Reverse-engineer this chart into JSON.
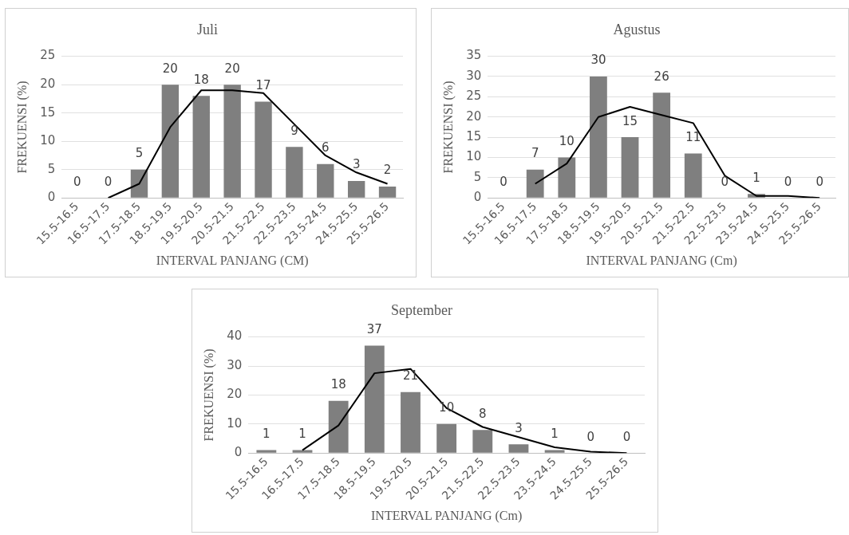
{
  "chart_data": [
    {
      "type": "bar",
      "title": "Juli",
      "xlabel": "INTERVAL PANJANG (CM)",
      "ylabel": "FREKUENSI (%)",
      "categories": [
        "15.5-16.5",
        "16.5-17.5",
        "17.5-18.5",
        "18.5-19.5",
        "19.5-20.5",
        "20.5-21.5",
        "21.5-22.5",
        "22.5-23.5",
        "23.5-24.5",
        "24.5-25.5",
        "25.5-26.5"
      ],
      "series": [
        {
          "color": "#7f7f7f",
          "values": [
            0,
            0,
            5,
            20,
            18,
            20,
            17,
            9,
            6,
            3,
            2
          ],
          "value_labels": [
            "0",
            "0",
            "5",
            "20",
            "18",
            "20",
            "17",
            "9",
            "6",
            "3",
            "2"
          ]
        },
        {
          "type": "line",
          "color": "#000000",
          "marker": "none",
          "values": [
            null,
            0,
            2.5,
            12.5,
            19,
            19,
            18.5,
            13,
            7.5,
            4.5,
            2.5
          ]
        }
      ],
      "ylim": [
        0,
        25
      ],
      "yticks": [
        0,
        5,
        10,
        15,
        20,
        25
      ],
      "grid": "y"
    },
    {
      "type": "bar",
      "title": "Agustus",
      "xlabel": "INTERVAL PANJANG (Cm)",
      "ylabel": "FREKUENSI (%)",
      "categories": [
        "15.5-16.5",
        "16.5-17.5",
        "17.5-18.5",
        "18.5-19.5",
        "19.5-20.5",
        "20.5-21.5",
        "21.5-22.5",
        "22.5-23.5",
        "23.5-24.5",
        "24.5-25.5",
        "25.5-26.5"
      ],
      "series": [
        {
          "color": "#7f7f7f",
          "values": [
            0,
            7,
            10,
            30,
            15,
            26,
            11,
            0,
            1,
            0,
            0
          ],
          "value_labels": [
            "0",
            "7",
            "10",
            "30",
            "15",
            "26",
            "11",
            "0",
            "1",
            "0",
            "0"
          ]
        },
        {
          "type": "line",
          "color": "#000000",
          "marker": "none",
          "values": [
            null,
            3.5,
            8.5,
            20,
            22.5,
            20.5,
            18.5,
            5.5,
            0.5,
            0.5,
            0
          ]
        }
      ],
      "ylim": [
        0,
        35
      ],
      "yticks": [
        0,
        5,
        10,
        15,
        20,
        25,
        30,
        35
      ],
      "grid": "y"
    },
    {
      "type": "bar",
      "title": "September",
      "xlabel": "INTERVAL PANJANG (Cm)",
      "ylabel": "FREKUENSI (%)",
      "categories": [
        "15.5-16.5",
        "16.5-17.5",
        "17.5-18.5",
        "18.5-19.5",
        "19.5-20.5",
        "20.5-21.5",
        "21.5-22.5",
        "22.5-23.5",
        "23.5-24.5",
        "24.5-25.5",
        "25.5-26.5"
      ],
      "series": [
        {
          "color": "#7f7f7f",
          "values": [
            1,
            1,
            18,
            37,
            21,
            10,
            8,
            3,
            1,
            0,
            0
          ],
          "value_labels": [
            "1",
            "1",
            "18",
            "37",
            "21",
            "10",
            "8",
            "3",
            "1",
            "0",
            "0"
          ]
        },
        {
          "type": "line",
          "color": "#000000",
          "marker": "none",
          "values": [
            null,
            1,
            9.5,
            27.5,
            29,
            15.5,
            9,
            5.5,
            2,
            0.5,
            0
          ]
        }
      ],
      "ylim": [
        0,
        40
      ],
      "yticks": [
        0,
        10,
        20,
        30,
        40
      ],
      "grid": "y"
    }
  ]
}
